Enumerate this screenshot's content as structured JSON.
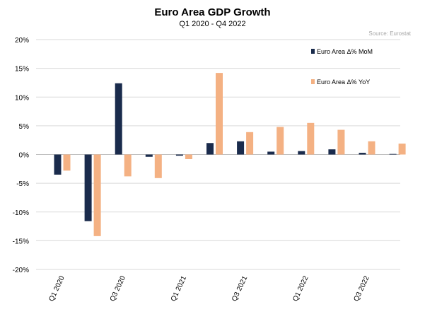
{
  "chart_data": {
    "type": "bar",
    "title": "Euro Area GDP Growth",
    "subtitle": "Q1 2020 - Q4 2022",
    "source": "Source: Eurostat",
    "categories": [
      "Q1 2020",
      "Q2 2020",
      "Q3 2020",
      "Q4 2020",
      "Q1 2021",
      "Q2 2021",
      "Q3 2021",
      "Q4 2021",
      "Q1 2022",
      "Q2 2022",
      "Q3 2022",
      "Q4 2022"
    ],
    "x_tick_labels": [
      "Q1 2020",
      "Q3 2020",
      "Q1 2021",
      "Q3 2021",
      "Q1 2022",
      "Q3 2022"
    ],
    "series": [
      {
        "name": "Euro Area Δ% MoM",
        "color": "#1a2b4c",
        "values": [
          -3.5,
          -11.6,
          12.4,
          -0.4,
          -0.2,
          2.0,
          2.3,
          0.5,
          0.6,
          0.9,
          0.3,
          0.1
        ]
      },
      {
        "name": "Euro Area Δ% YoY",
        "color": "#f4b183",
        "values": [
          -2.8,
          -14.2,
          -3.8,
          -4.1,
          -0.8,
          14.2,
          3.9,
          4.8,
          5.5,
          4.3,
          2.3,
          1.9
        ]
      }
    ],
    "ylim": [
      -20,
      20
    ],
    "yticks": [
      -20,
      -15,
      -10,
      -5,
      0,
      5,
      10,
      15,
      20
    ],
    "ytick_labels": [
      "-20%",
      "-15%",
      "-10%",
      "-5%",
      "0%",
      "5%",
      "10%",
      "15%",
      "20%"
    ],
    "grid": true,
    "legend_position": "top-right"
  }
}
